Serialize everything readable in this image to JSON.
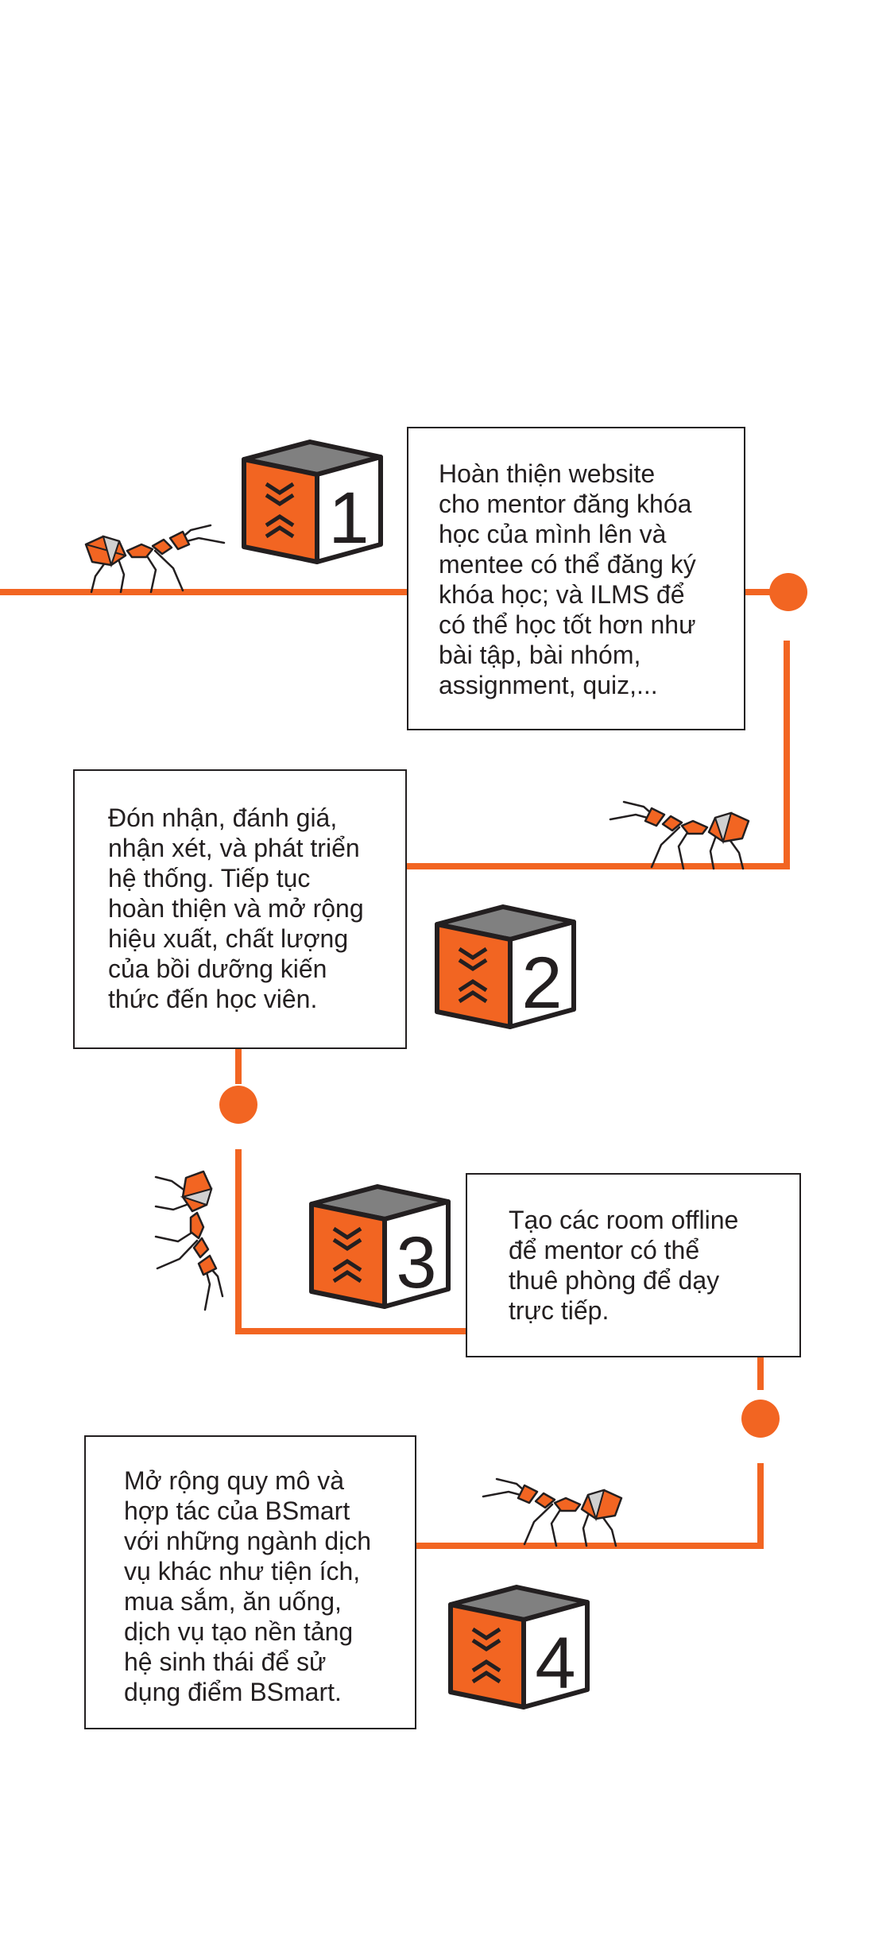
{
  "colors": {
    "accent": "#f26522",
    "ink": "#231f20",
    "cube_top": "#808080"
  },
  "steps": [
    {
      "number": "1",
      "text": "Hoàn thiện website\ncho mentor đăng khóa\nhọc của mình lên và\nmentee có thể đăng ký\nkhóa học;  và ILMS để\ncó thể học tốt hơn như\nbài tập, bài nhóm,\nassignment, quiz,..."
    },
    {
      "number": "2",
      "text": "Đón nhận, đánh giá,\nnhận xét, và phát triển\nhệ thống. Tiếp tục\nhoàn thiện và mở rộng\nhiệu xuất, chất lượng\ncủa bồi dưỡng kiến\nthức đến học viên."
    },
    {
      "number": "3",
      "text": "Tạo các room offline\nđể mentor có thể\nthuê phòng để dạy\ntrực tiếp."
    },
    {
      "number": "4",
      "text": "Mở rộng quy mô và\nhợp tác của BSmart\nvới những ngành dịch\nvụ khác như tiện ích,\nmua sắm, ăn uống,\ndịch vụ tạo nền tảng\nhệ sinh thái để sử\ndụng điểm BSmart."
    }
  ]
}
